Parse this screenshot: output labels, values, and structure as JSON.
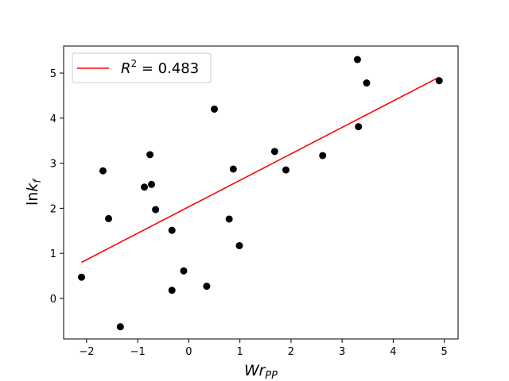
{
  "chart_data": {
    "type": "scatter",
    "xlabel": "Wr",
    "xlabel_sub": "PP",
    "ylabel": "lnk",
    "ylabel_sub": "f",
    "xlim": [
      -2.45,
      5.27
    ],
    "ylim": [
      -0.9,
      5.6
    ],
    "xticks": [
      -2,
      -1,
      0,
      1,
      2,
      3,
      4,
      5
    ],
    "yticks": [
      0,
      1,
      2,
      3,
      4,
      5
    ],
    "grid": false,
    "legend_position": "top-left",
    "colors": {
      "points": "#000000",
      "fit_line": "#ff0000",
      "axes": "#000000"
    },
    "points": [
      {
        "x": -2.1,
        "y": 0.47
      },
      {
        "x": -1.68,
        "y": 2.83
      },
      {
        "x": -1.57,
        "y": 1.77
      },
      {
        "x": -1.34,
        "y": -0.63
      },
      {
        "x": -0.87,
        "y": 2.47
      },
      {
        "x": -0.76,
        "y": 3.19
      },
      {
        "x": -0.73,
        "y": 2.53
      },
      {
        "x": -0.65,
        "y": 1.97
      },
      {
        "x": -0.33,
        "y": 1.51
      },
      {
        "x": -0.33,
        "y": 0.18
      },
      {
        "x": -0.1,
        "y": 0.61
      },
      {
        "x": 0.35,
        "y": 0.27
      },
      {
        "x": 0.5,
        "y": 4.2
      },
      {
        "x": 0.79,
        "y": 1.76
      },
      {
        "x": 0.87,
        "y": 2.87
      },
      {
        "x": 0.99,
        "y": 1.17
      },
      {
        "x": 1.68,
        "y": 3.26
      },
      {
        "x": 1.9,
        "y": 2.85
      },
      {
        "x": 2.62,
        "y": 3.17
      },
      {
        "x": 3.3,
        "y": 5.3
      },
      {
        "x": 3.32,
        "y": 3.81
      },
      {
        "x": 3.48,
        "y": 4.78
      },
      {
        "x": 4.9,
        "y": 4.83
      }
    ],
    "fit_line": {
      "name": "R^2 = 0.483",
      "label_prefix": "R",
      "label_sup": "2",
      "label_value": " = 0.483",
      "x": [
        -2.1,
        4.9
      ],
      "y": [
        0.8,
        4.91
      ]
    }
  }
}
